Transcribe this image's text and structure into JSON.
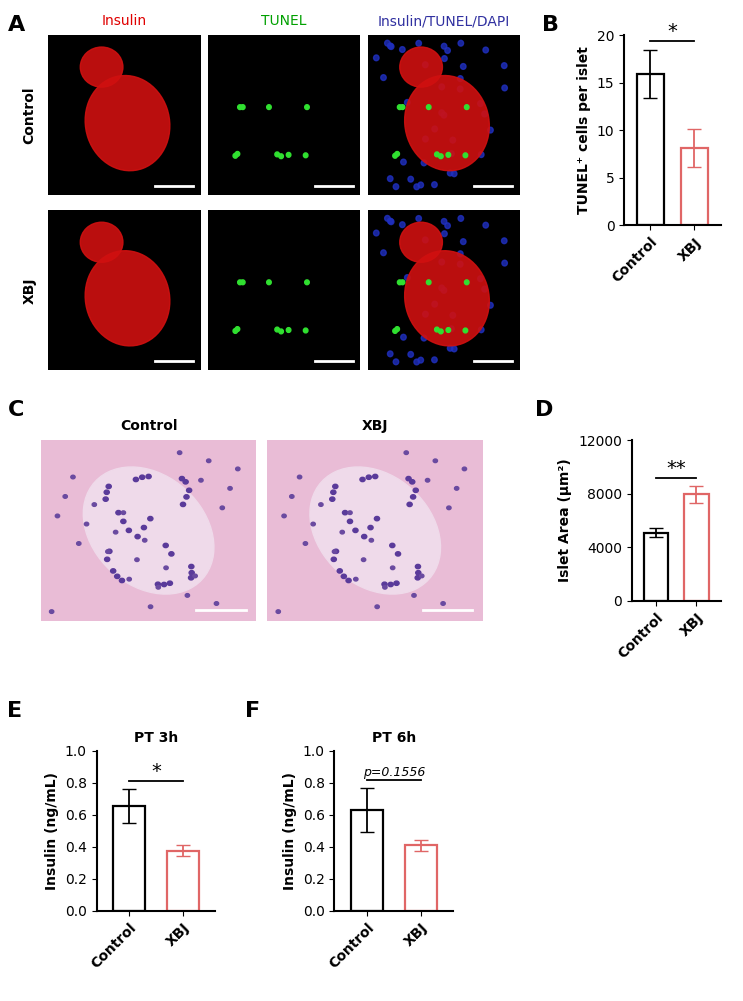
{
  "chart_data": [
    {
      "panel": "B",
      "type": "bar",
      "categories": [
        "Control",
        "XBJ"
      ],
      "values": [
        15.9,
        8.1
      ],
      "errors": [
        2.5,
        2.0
      ],
      "colors": [
        "#000000",
        "#e06666"
      ],
      "y_label": "TUNEL⁺ cells per islet",
      "ylim": [
        0,
        20
      ],
      "yticks": [
        0,
        5,
        10,
        15,
        20
      ],
      "annotations": [
        "*"
      ]
    },
    {
      "panel": "D",
      "type": "bar",
      "categories": [
        "Control",
        "XBJ"
      ],
      "values": [
        5100,
        7950
      ],
      "errors": [
        350,
        600
      ],
      "colors": [
        "#000000",
        "#e06666"
      ],
      "y_label": "Islet Area (μm²)",
      "ylim": [
        0,
        12000
      ],
      "yticks": [
        0,
        4000,
        8000,
        12000
      ],
      "annotations": [
        "**"
      ]
    },
    {
      "panel": "E",
      "type": "bar",
      "title": "PT 3h",
      "categories": [
        "Control",
        "XBJ"
      ],
      "values": [
        0.655,
        0.375
      ],
      "errors": [
        0.105,
        0.035
      ],
      "colors": [
        "#000000",
        "#e06666"
      ],
      "y_label": "Insulin (ng/mL)",
      "ylim": [
        0.0,
        1.0
      ],
      "yticks": [
        0.0,
        0.2,
        0.4,
        0.6,
        0.8,
        1.0
      ],
      "annotations": [
        "*"
      ]
    },
    {
      "panel": "F",
      "type": "bar",
      "title": "PT 6h",
      "categories": [
        "Control",
        "XBJ"
      ],
      "values": [
        0.63,
        0.41
      ],
      "errors": [
        0.135,
        0.035
      ],
      "colors": [
        "#000000",
        "#e06666"
      ],
      "y_label": "Insulin (ng/mL)",
      "ylim": [
        0.0,
        1.0
      ],
      "yticks": [
        0.0,
        0.2,
        0.4,
        0.6,
        0.8,
        1.0
      ],
      "annotations": [
        "p=0.1556"
      ]
    }
  ],
  "image_panels": [
    {
      "panel": "A",
      "columns": [
        "Insulin",
        "TUNEL",
        "Insulin/TUNEL/DAPI"
      ],
      "column_colors": [
        "#e00000",
        "#00a000",
        "#3030a0"
      ],
      "rows": [
        "Control",
        "XBJ"
      ]
    },
    {
      "panel": "C",
      "columns": [
        "Control",
        "XBJ"
      ]
    }
  ]
}
